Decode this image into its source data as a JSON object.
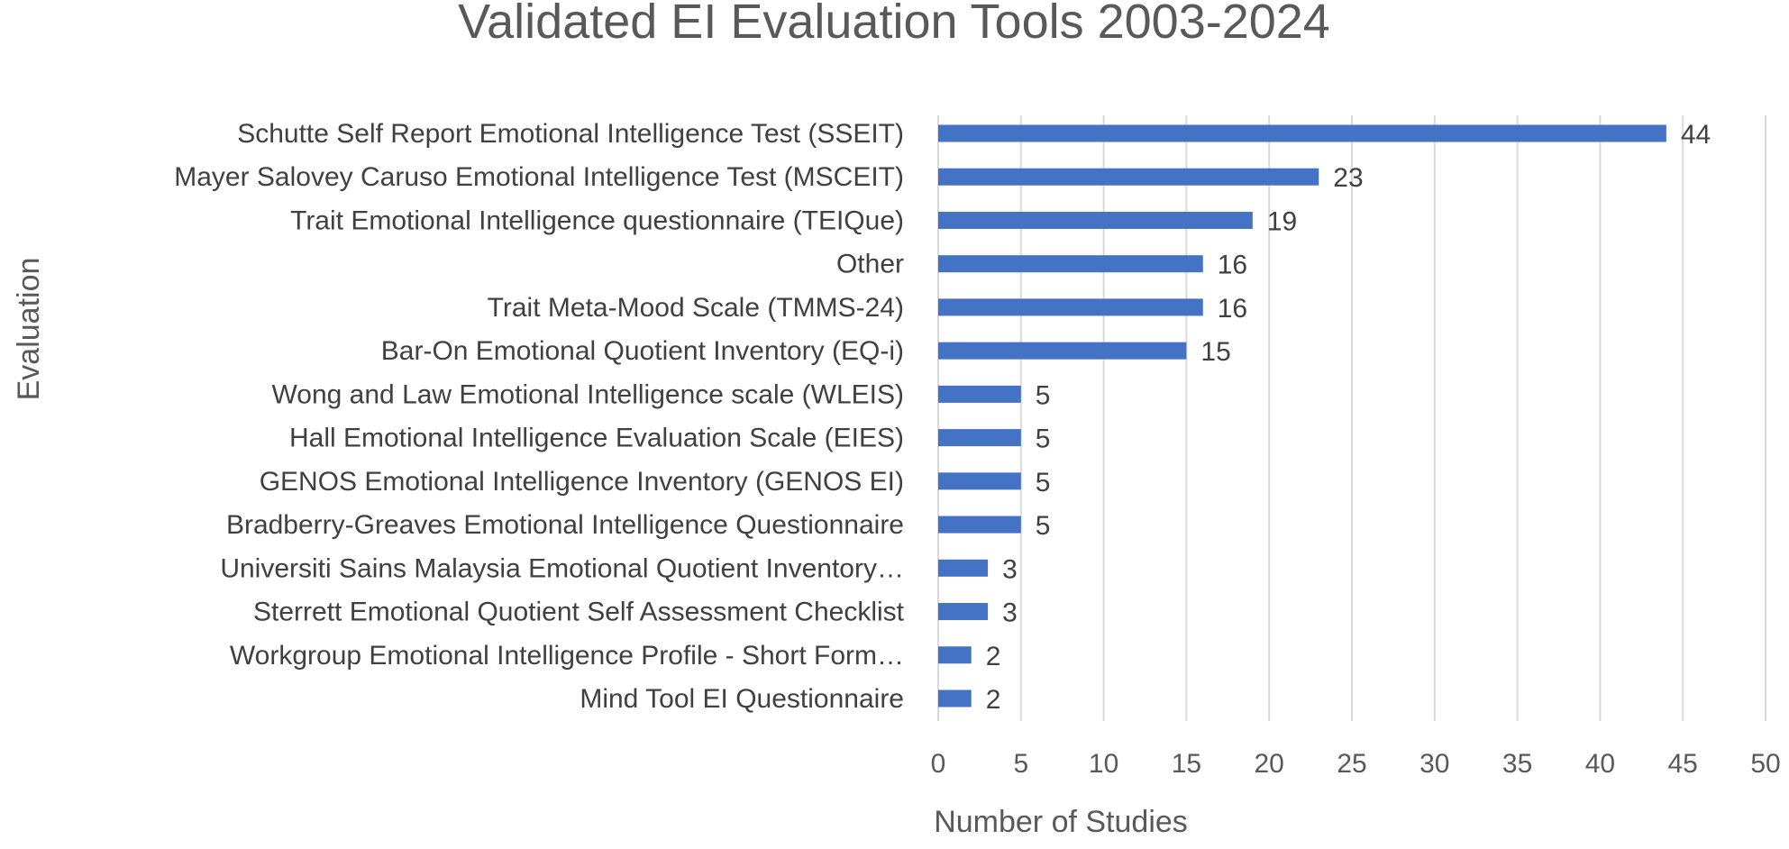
{
  "colors": {
    "bar": "#4472c4",
    "gridline": "#d9d9d9",
    "text": "#595959",
    "background": "#ffffff"
  },
  "chart_data": {
    "type": "bar",
    "orientation": "horizontal",
    "title": "Validated EI Evaluation Tools 2003-2024",
    "xlabel": "Number of Studies",
    "ylabel": "Evaluation",
    "xlim": [
      0,
      50
    ],
    "xticks": [
      0,
      5,
      10,
      15,
      20,
      25,
      30,
      35,
      40,
      45,
      50
    ],
    "grid": true,
    "legend": "none",
    "categories": [
      "Schutte Self Report Emotional Intelligence Test (SSEIT)",
      "Mayer Salovey Caruso Emotional Intelligence Test (MSCEIT)",
      "Trait Emotional Intelligence questionnaire  (TEIQue)",
      "Other",
      "Trait Meta-Mood Scale (TMMS-24)",
      "Bar-On Emotional Quotient Inventory (EQ-i)",
      "Wong and Law Emotional Intelligence scale (WLEIS)",
      "Hall Emotional Intelligence Evaluation Scale (EIES)",
      "GENOS Emotional Intelligence Inventory (GENOS EI)",
      "Bradberry-Greaves Emotional Intelligence Questionnaire",
      "Universiti Sains Malaysia Emotional Quotient Inventory…",
      "Sterrett Emotional Quotient Self Assessment Checklist",
      "Workgroup Emotional Intelligence Profile - Short Form…",
      "Mind Tool EI Questionnaire"
    ],
    "values": [
      44,
      23,
      19,
      16,
      16,
      15,
      5,
      5,
      5,
      5,
      3,
      3,
      2,
      2
    ]
  }
}
